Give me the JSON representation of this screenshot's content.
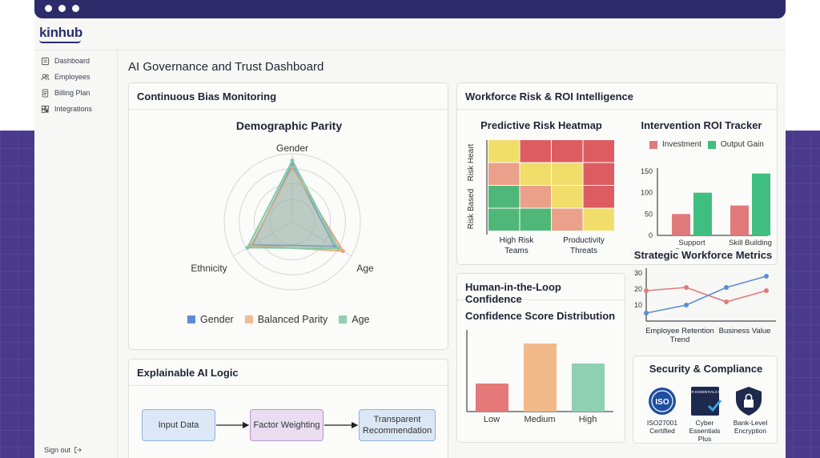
{
  "app": {
    "logo": "kinhub"
  },
  "sidebar": {
    "items": [
      {
        "label": "Dashboard",
        "icon": "grid-icon"
      },
      {
        "label": "Employees",
        "icon": "users-icon"
      },
      {
        "label": "Billing Plan",
        "icon": "document-icon"
      },
      {
        "label": "Integrations",
        "icon": "puzzle-icon"
      }
    ],
    "signout": "Sign out"
  },
  "page": {
    "title": "AI Governance and Trust Dashboard"
  },
  "bias": {
    "title": "Continuous Bias Monitoring",
    "chart_title": "Demographic Parity",
    "axes": [
      "Gender",
      "Age",
      "Ethnicity"
    ],
    "legend": [
      "Gender",
      "Balanced Parity",
      "Age"
    ]
  },
  "xai": {
    "title": "Explainable AI Logic",
    "steps": [
      "Input Data",
      "Factor Weighting",
      "Transparent Recommendation"
    ]
  },
  "workforce": {
    "title": "Workforce Risk & ROI Intelligence",
    "heatmap_title": "Predictive Risk Heatmap",
    "heatmap_ylabels": [
      "Risk Heart",
      "Risk Based"
    ],
    "heatmap_xlabels": [
      "High Risk Teams",
      "Productivity Threats"
    ],
    "roi_title": "Intervention ROI Tracker",
    "roi_legend": [
      "Investment",
      "Output Gain"
    ],
    "metrics_title": "Strategic Workforce Metrics",
    "metrics_xlabels": [
      "Employee Retention Trend",
      "Business Value"
    ]
  },
  "hitl": {
    "title": "Human-in-the-Loop Confidence",
    "dist_title": "Confidence Score Distribution"
  },
  "security": {
    "title": "Security & Compliance",
    "badges": [
      {
        "label": "ISO27001 Certified",
        "icon": "iso-icon",
        "text": "ISO"
      },
      {
        "label": "Cyber Essentials Plus",
        "icon": "cyber-essentials-icon",
        "text": "CYBER ESSENTIALS PLUS"
      },
      {
        "label": "Bank-Level Encryption",
        "icon": "lock-shield-icon"
      }
    ]
  },
  "colors": {
    "blue": "#5b8dd6",
    "orange": "#e8a57a",
    "green": "#7fc9a8",
    "red": "#e07a7a",
    "teal": "#3fbf7f",
    "dark": "#2e2b6b"
  },
  "chart_data": [
    {
      "type": "radar",
      "title": "Demographic Parity",
      "axes": [
        "Gender",
        "Age",
        "Ethnicity"
      ],
      "rmax": 1,
      "series": [
        {
          "name": "Gender",
          "values": [
            0.84,
            0.72,
            0.68
          ]
        },
        {
          "name": "Balanced Parity",
          "values": [
            0.8,
            0.86,
            0.7
          ]
        },
        {
          "name": "Age",
          "values": [
            0.9,
            0.78,
            0.76
          ]
        }
      ]
    },
    {
      "type": "heatmap",
      "title": "Predictive Risk Heatmap",
      "levels": [
        [
          1,
          3,
          3,
          3
        ],
        [
          2,
          1,
          1,
          3
        ],
        [
          0,
          2,
          1,
          3
        ],
        [
          0,
          0,
          2,
          1
        ]
      ],
      "palette": [
        "#4fb878",
        "#f1dd6a",
        "#eba08a",
        "#dd5c62"
      ]
    },
    {
      "type": "bar",
      "title": "Intervention ROI Tracker",
      "categories": [
        "Support Programs",
        "Skill Building"
      ],
      "ylim": [
        0,
        150
      ],
      "yticks": [
        0,
        50,
        100,
        150
      ],
      "series": [
        {
          "name": "Investment",
          "values": [
            50,
            70
          ]
        },
        {
          "name": "Output Gain",
          "values": [
            100,
            145
          ]
        }
      ]
    },
    {
      "type": "line",
      "title": "Strategic Workforce Metrics",
      "ylim": [
        0,
        30
      ],
      "yticks": [
        10,
        20,
        30
      ],
      "x": [
        0,
        1,
        2,
        3
      ],
      "series": [
        {
          "values": [
            19,
            21,
            12,
            19
          ]
        },
        {
          "values": [
            5,
            10,
            21,
            28
          ]
        }
      ]
    },
    {
      "type": "bar",
      "title": "Confidence Score Distribution",
      "categories": [
        "Low",
        "Medium",
        "High"
      ],
      "values": [
        35,
        85,
        60
      ],
      "ylim": [
        0,
        100
      ]
    }
  ]
}
